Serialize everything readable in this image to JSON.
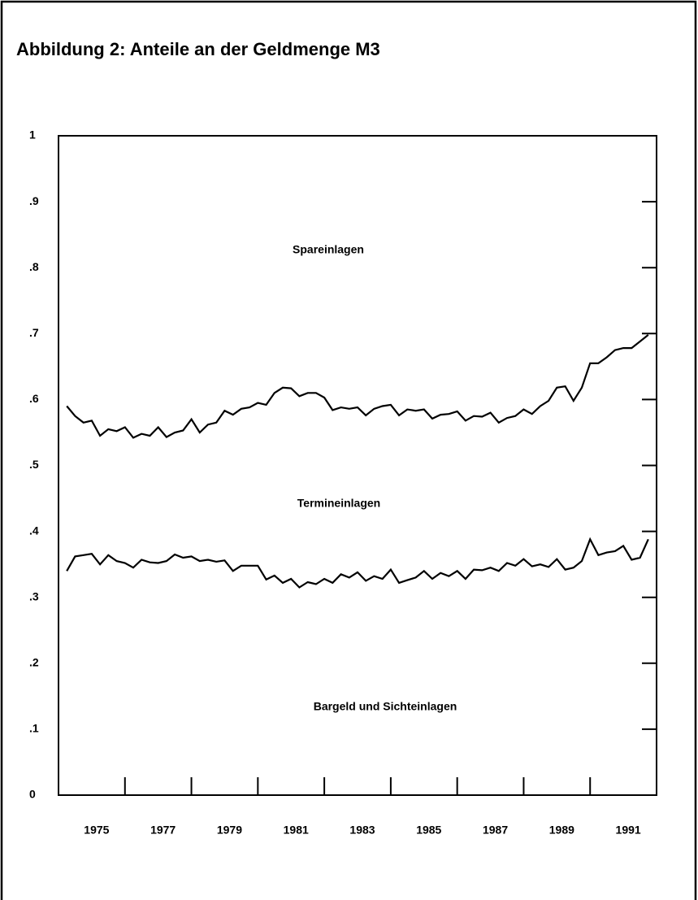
{
  "chart_data": {
    "type": "line",
    "title": "Abbildung 2: Anteile an der Geldmenge M3",
    "x": [
      1974.25,
      1974.5,
      1974.75,
      1975,
      1975.25,
      1975.5,
      1975.75,
      1976,
      1976.25,
      1976.5,
      1976.75,
      1977,
      1977.25,
      1977.5,
      1977.75,
      1978,
      1978.25,
      1978.5,
      1978.75,
      1979,
      1979.25,
      1979.5,
      1979.75,
      1980,
      1980.25,
      1980.5,
      1980.75,
      1981,
      1981.25,
      1981.5,
      1981.75,
      1982,
      1982.25,
      1982.5,
      1982.75,
      1983,
      1983.25,
      1983.5,
      1983.75,
      1984,
      1984.25,
      1984.5,
      1984.75,
      1985,
      1985.25,
      1985.5,
      1985.75,
      1986,
      1986.25,
      1986.5,
      1986.75,
      1987,
      1987.25,
      1987.5,
      1987.75,
      1988,
      1988.25,
      1988.5,
      1988.75,
      1989,
      1989.25,
      1989.5,
      1989.75,
      1990,
      1990.25,
      1990.5,
      1990.75,
      1991,
      1991.25,
      1991.5,
      1991.75
    ],
    "series": [
      {
        "color": "#000000",
        "values": [
          0.59,
          0.575,
          0.565,
          0.568,
          0.545,
          0.555,
          0.552,
          0.558,
          0.542,
          0.548,
          0.545,
          0.558,
          0.543,
          0.55,
          0.553,
          0.57,
          0.55,
          0.562,
          0.565,
          0.583,
          0.577,
          0.586,
          0.588,
          0.595,
          0.592,
          0.61,
          0.618,
          0.617,
          0.605,
          0.61,
          0.61,
          0.603,
          0.584,
          0.588,
          0.586,
          0.588,
          0.576,
          0.586,
          0.59,
          0.592,
          0.576,
          0.585,
          0.583,
          0.585,
          0.571,
          0.577,
          0.578,
          0.582,
          0.568,
          0.575,
          0.574,
          0.58,
          0.565,
          0.572,
          0.575,
          0.585,
          0.578,
          0.59,
          0.598,
          0.618,
          0.62,
          0.598,
          0.618,
          0.655,
          0.655,
          0.664,
          0.675,
          0.678,
          0.678,
          0.688,
          0.698
        ]
      },
      {
        "color": "#000000",
        "values": [
          0.34,
          0.362,
          0.364,
          0.366,
          0.35,
          0.364,
          0.355,
          0.352,
          0.345,
          0.357,
          0.353,
          0.352,
          0.355,
          0.365,
          0.36,
          0.362,
          0.355,
          0.357,
          0.354,
          0.356,
          0.34,
          0.348,
          0.348,
          0.348,
          0.327,
          0.333,
          0.322,
          0.328,
          0.315,
          0.323,
          0.32,
          0.328,
          0.322,
          0.335,
          0.33,
          0.338,
          0.325,
          0.332,
          0.328,
          0.342,
          0.322,
          0.326,
          0.33,
          0.34,
          0.328,
          0.337,
          0.332,
          0.34,
          0.328,
          0.342,
          0.341,
          0.345,
          0.34,
          0.352,
          0.348,
          0.358,
          0.347,
          0.35,
          0.346,
          0.358,
          0.342,
          0.345,
          0.355,
          0.388,
          0.364,
          0.368,
          0.37,
          0.378,
          0.357,
          0.36,
          0.388
        ]
      }
    ],
    "annotations": [
      "Spareinlagen",
      "Termineinlagen",
      "Bargeld und Sichteinlagen"
    ],
    "xlim": [
      1974,
      1992
    ],
    "xticks": [
      1975,
      1977,
      1979,
      1981,
      1983,
      1985,
      1987,
      1989,
      1991
    ],
    "xtick_marks": [
      1976,
      1978,
      1980,
      1982,
      1984,
      1986,
      1988,
      1990
    ],
    "ylim": [
      0,
      1
    ],
    "yticks": [
      0,
      {
        "value": 0.1,
        "label": ".1"
      },
      {
        "value": 0.2,
        "label": ".2"
      },
      {
        "value": 0.3,
        "label": ".3"
      },
      {
        "value": 0.4,
        "label": ".4"
      },
      {
        "value": 0.5,
        "label": ".5"
      },
      {
        "value": 0.6,
        "label": ".6"
      },
      {
        "value": 0.7,
        "label": ".7"
      },
      {
        "value": 0.8,
        "label": ".8"
      },
      {
        "value": 0.9,
        "label": ".9"
      },
      1
    ]
  }
}
